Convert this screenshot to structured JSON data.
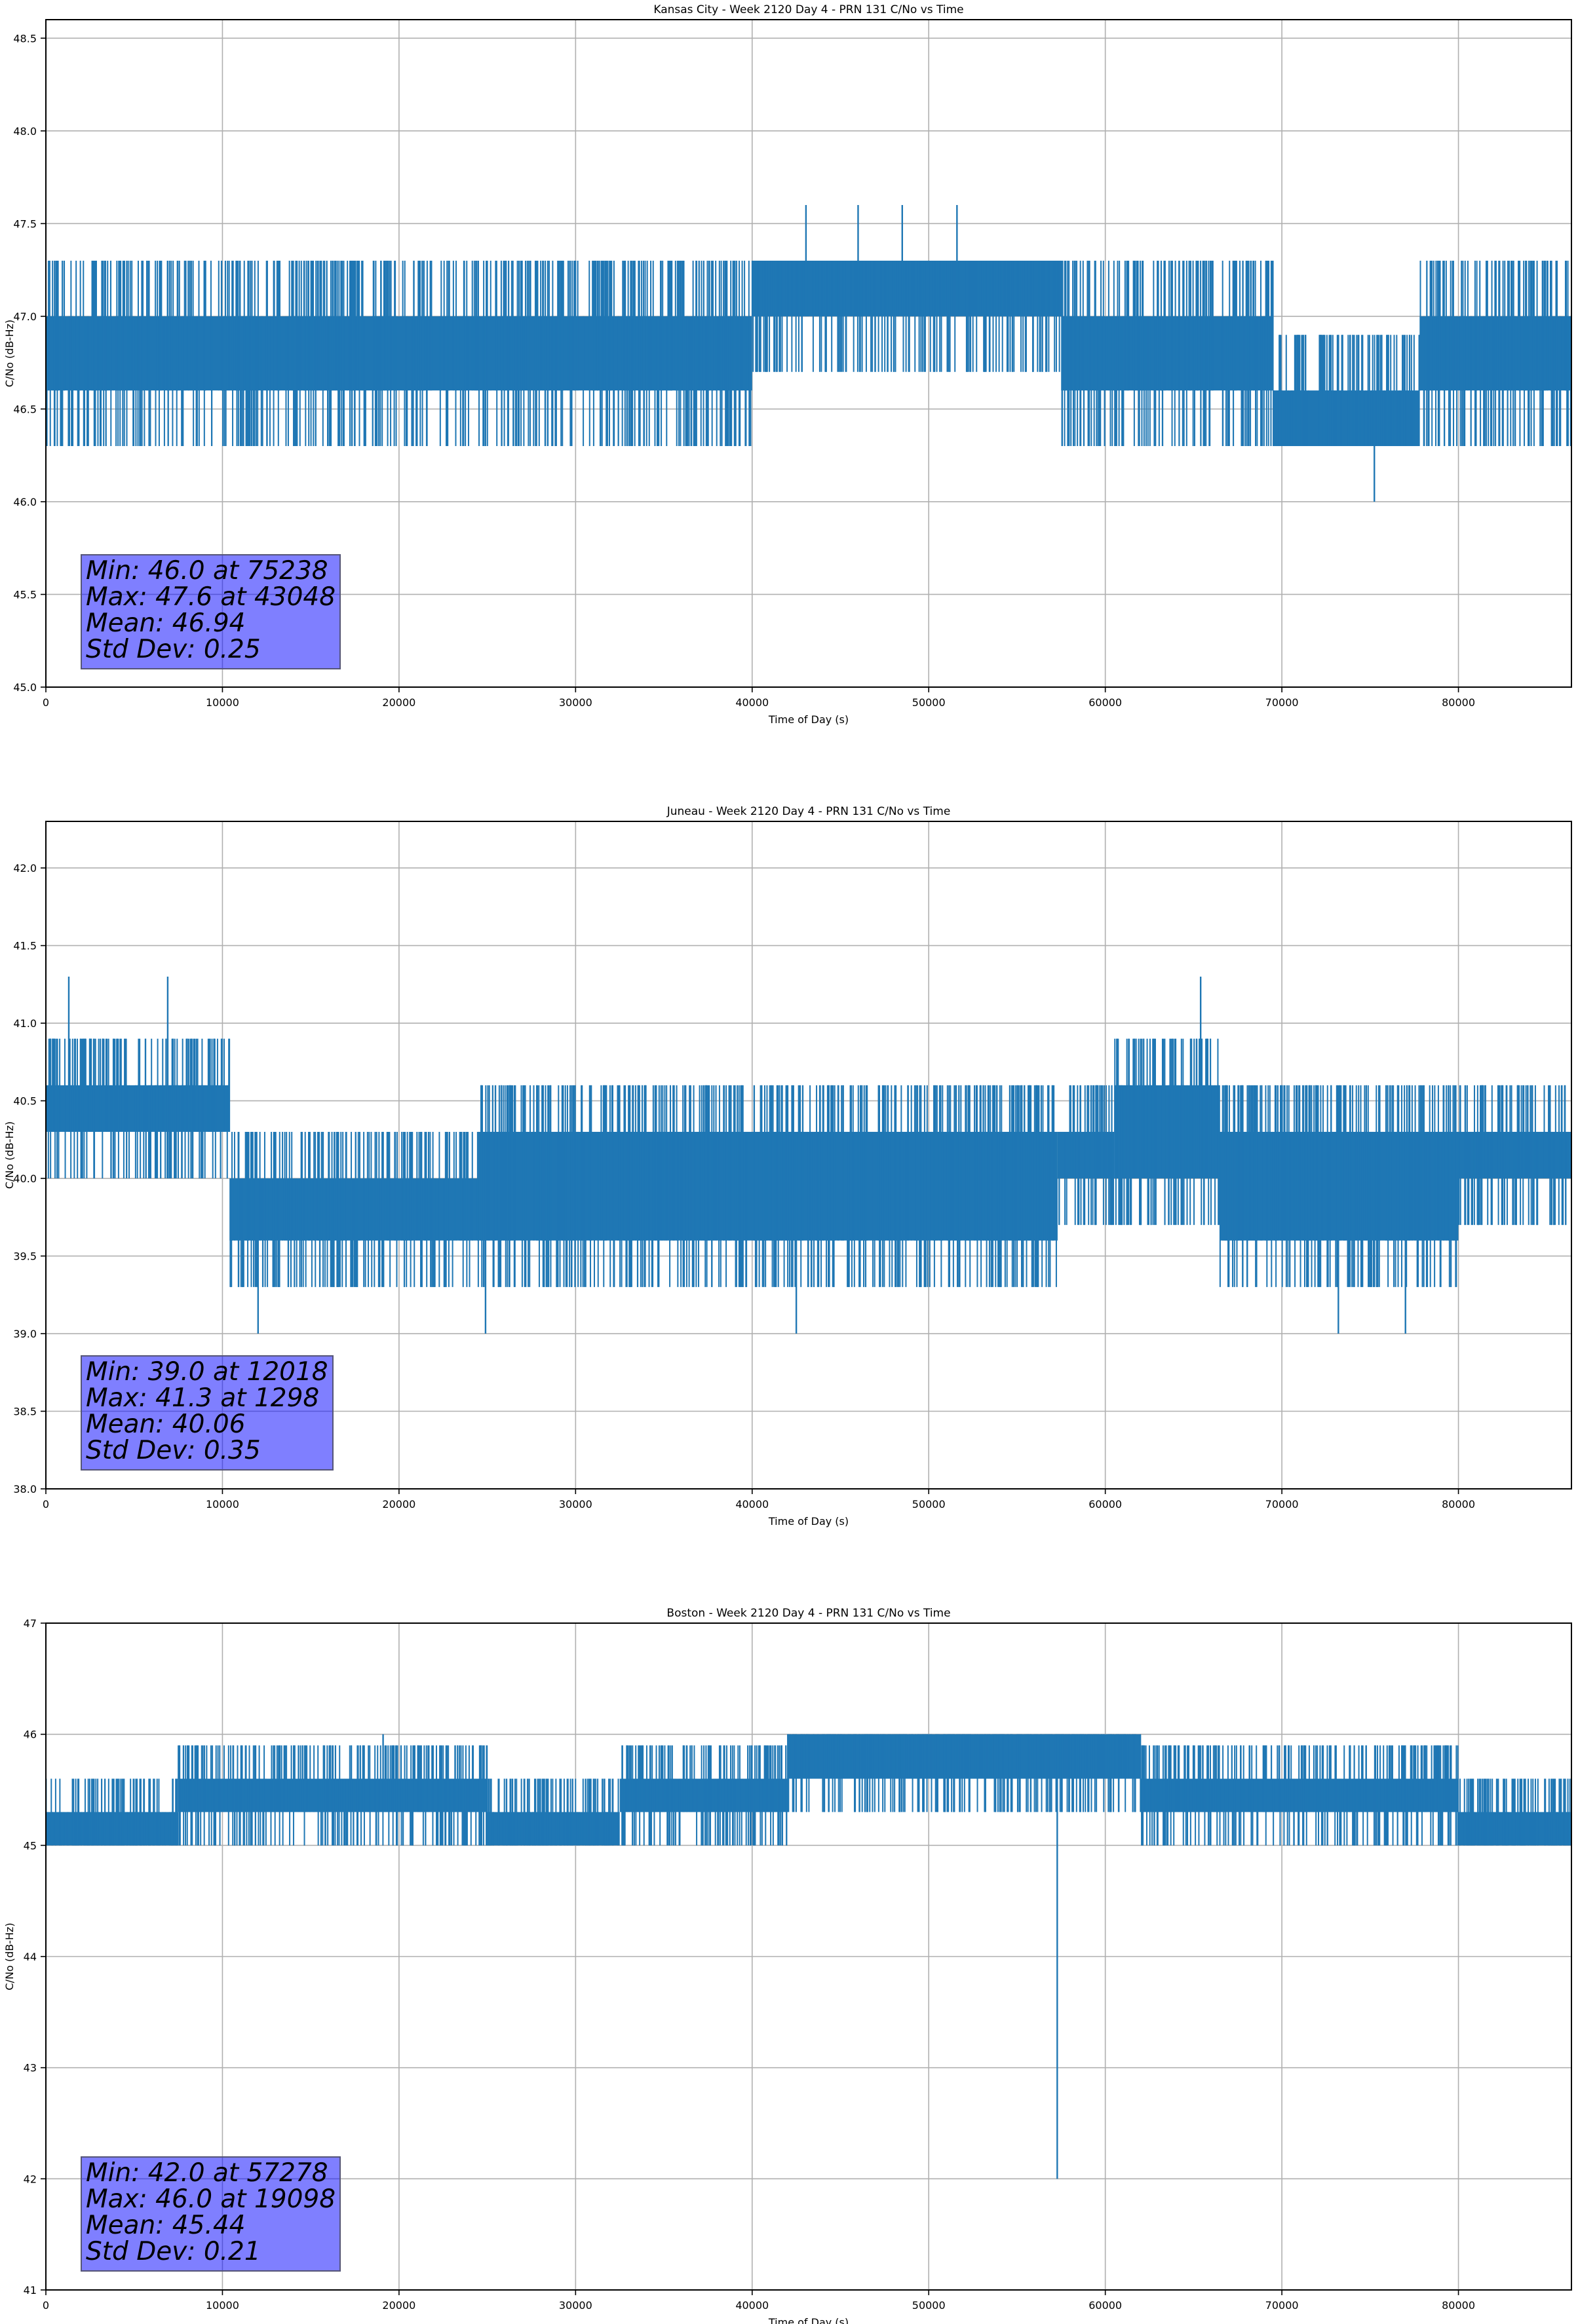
{
  "colors": {
    "series": "#1f77b4",
    "grid": "#b0b0b0",
    "stats_box": "#7f7fff"
  },
  "chart_data": [
    {
      "type": "line",
      "title": "Kansas City - Week 2120 Day 4 - PRN 131 C/No vs Time",
      "xlabel": "Time of Day (s)",
      "ylabel": "C/No (dB-Hz)",
      "xlim": [
        0,
        86400
      ],
      "ylim": [
        45.0,
        48.6
      ],
      "xticks": [
        0,
        10000,
        20000,
        30000,
        40000,
        50000,
        60000,
        70000,
        80000
      ],
      "yticks": [
        "45.0",
        "45.5",
        "46.0",
        "46.5",
        "47.0",
        "47.5",
        "48.0",
        "48.5"
      ],
      "grid": true,
      "band_segments": [
        {
          "x": [
            0,
            40000
          ],
          "low": 46.6,
          "high": 47.0
        },
        {
          "x": [
            40000,
            57500
          ],
          "low": 47.0,
          "high": 47.3
        },
        {
          "x": [
            57500,
            69500
          ],
          "low": 46.6,
          "high": 47.0
        },
        {
          "x": [
            69500,
            77800
          ],
          "low": 46.3,
          "high": 46.6
        },
        {
          "x": [
            77800,
            86400
          ],
          "low": 46.6,
          "high": 47.0
        }
      ],
      "spike_range": [
        46.3,
        47.3
      ],
      "extremes": [
        {
          "x": 75238,
          "y": 46.0
        },
        {
          "x": 43048,
          "y": 47.6
        },
        {
          "x": 46000,
          "y": 47.6
        },
        {
          "x": 48500,
          "y": 47.6
        },
        {
          "x": 51600,
          "y": 47.6
        },
        {
          "x": 18100,
          "y": 46.3
        },
        {
          "x": 20800,
          "y": 46.3
        },
        {
          "x": 24800,
          "y": 46.3
        }
      ],
      "stats": {
        "min": "Min: 46.0 at 75238",
        "max": "Max: 47.6 at 43048",
        "mean": "Mean: 46.94",
        "std": "Std Dev: 0.25"
      }
    },
    {
      "type": "line",
      "title": "Juneau - Week 2120 Day 4 - PRN 131 C/No vs Time",
      "xlabel": "Time of Day (s)",
      "ylabel": "C/No (dB-Hz)",
      "xlim": [
        0,
        86400
      ],
      "ylim": [
        38.0,
        42.3
      ],
      "xticks": [
        0,
        10000,
        20000,
        30000,
        40000,
        50000,
        60000,
        70000,
        80000
      ],
      "yticks": [
        "38.0",
        "38.5",
        "39.0",
        "39.5",
        "40.0",
        "40.5",
        "41.0",
        "41.5",
        "42.0"
      ],
      "grid": true,
      "band_segments": [
        {
          "x": [
            0,
            10400
          ],
          "low": 40.3,
          "high": 40.6
        },
        {
          "x": [
            10400,
            24500
          ],
          "low": 39.6,
          "high": 40.0
        },
        {
          "x": [
            24500,
            57300
          ],
          "low": 39.6,
          "high": 40.3
        },
        {
          "x": [
            57300,
            60500
          ],
          "low": 40.0,
          "high": 40.3
        },
        {
          "x": [
            60500,
            66500
          ],
          "low": 40.0,
          "high": 40.6
        },
        {
          "x": [
            66500,
            80000
          ],
          "low": 39.6,
          "high": 40.3
        },
        {
          "x": [
            80000,
            86400
          ],
          "low": 40.0,
          "high": 40.3
        }
      ],
      "spike_range": [
        39.3,
        41.0
      ],
      "extremes": [
        {
          "x": 12018,
          "y": 39.0
        },
        {
          "x": 1298,
          "y": 41.3
        },
        {
          "x": 6900,
          "y": 41.3
        },
        {
          "x": 65400,
          "y": 41.3
        },
        {
          "x": 24900,
          "y": 39.0
        },
        {
          "x": 42500,
          "y": 39.0
        },
        {
          "x": 73200,
          "y": 39.0
        },
        {
          "x": 77000,
          "y": 39.0
        }
      ],
      "stats": {
        "min": "Min: 39.0 at 12018",
        "max": "Max: 41.3 at 1298",
        "mean": "Mean: 40.06",
        "std": "Std Dev: 0.35"
      }
    },
    {
      "type": "line",
      "title": "Boston - Week 2120 Day 4 - PRN 131 C/No vs Time",
      "xlabel": "Time of Day (s)",
      "ylabel": "C/No (dB-Hz)",
      "xlim": [
        0,
        86400
      ],
      "ylim": [
        41,
        47
      ],
      "xticks": [
        0,
        10000,
        20000,
        30000,
        40000,
        50000,
        60000,
        70000,
        80000
      ],
      "yticks": [
        "41",
        "42",
        "43",
        "44",
        "45",
        "46",
        "47"
      ],
      "grid": true,
      "band_segments": [
        {
          "x": [
            0,
            7500
          ],
          "low": 45.0,
          "high": 45.3
        },
        {
          "x": [
            7500,
            25000
          ],
          "low": 45.3,
          "high": 45.6
        },
        {
          "x": [
            25000,
            32500
          ],
          "low": 45.0,
          "high": 45.3
        },
        {
          "x": [
            32500,
            42000
          ],
          "low": 45.3,
          "high": 45.6
        },
        {
          "x": [
            42000,
            62000
          ],
          "low": 45.6,
          "high": 46.0
        },
        {
          "x": [
            62000,
            80000
          ],
          "low": 45.3,
          "high": 45.6
        },
        {
          "x": [
            80000,
            86400
          ],
          "low": 45.0,
          "high": 45.3
        }
      ],
      "spike_range": [
        45.0,
        46.0
      ],
      "extremes": [
        {
          "x": 57278,
          "y": 42.0
        },
        {
          "x": 19098,
          "y": 46.0
        }
      ],
      "stats": {
        "min": "Min: 42.0 at 57278",
        "max": "Max: 46.0 at 19098",
        "mean": "Mean: 45.44",
        "std": "Std Dev: 0.21"
      }
    }
  ]
}
